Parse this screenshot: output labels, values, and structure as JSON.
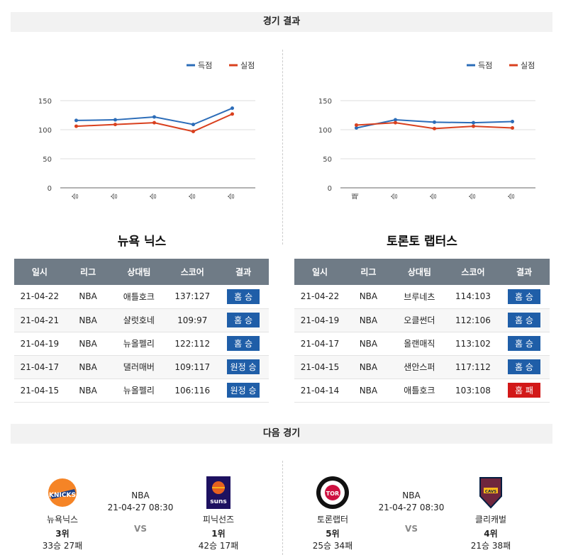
{
  "results_header": "경기 결과",
  "next_header": "다음 경기",
  "legend": {
    "score": "득점",
    "conceded": "실점"
  },
  "colors": {
    "score": "#2b6cb8",
    "conceded": "#d9401e",
    "win": "#1f5ea8",
    "loss": "#d21818",
    "table_header": "#6f7b86"
  },
  "chart_data": [
    {
      "type": "line",
      "categories": [
        "승",
        "승",
        "승",
        "승",
        "승"
      ],
      "ylim": [
        0,
        150
      ],
      "yticks": [
        0,
        50,
        100,
        150
      ],
      "series": [
        {
          "name": "득점",
          "values": [
            116,
            117,
            122,
            109,
            137
          ]
        },
        {
          "name": "실점",
          "values": [
            106,
            109,
            112,
            97,
            127
          ]
        }
      ],
      "legend": "top-right",
      "grid": true
    },
    {
      "type": "line",
      "categories": [
        "패",
        "승",
        "승",
        "승",
        "승"
      ],
      "ylim": [
        0,
        150
      ],
      "yticks": [
        0,
        50,
        100,
        150
      ],
      "series": [
        {
          "name": "득점",
          "values": [
            103,
            117,
            113,
            112,
            114
          ]
        },
        {
          "name": "실점",
          "values": [
            108,
            112,
            102,
            106,
            103
          ]
        }
      ],
      "legend": "top-right",
      "grid": true
    }
  ],
  "teams": [
    {
      "name": "뉴욕 닉스",
      "columns": [
        "일시",
        "리그",
        "상대팀",
        "스코어",
        "결과"
      ],
      "rows": [
        {
          "date": "21-04-22",
          "league": "NBA",
          "opponent": "애틀호크",
          "score": "137:127",
          "result": "홈 승",
          "win": true
        },
        {
          "date": "21-04-21",
          "league": "NBA",
          "opponent": "샬럿호네",
          "score": "109:97",
          "result": "홈 승",
          "win": true
        },
        {
          "date": "21-04-19",
          "league": "NBA",
          "opponent": "뉴올펠리",
          "score": "122:112",
          "result": "홈 승",
          "win": true
        },
        {
          "date": "21-04-17",
          "league": "NBA",
          "opponent": "댈러매버",
          "score": "109:117",
          "result": "원정 승",
          "win": true
        },
        {
          "date": "21-04-15",
          "league": "NBA",
          "opponent": "뉴올펠리",
          "score": "106:116",
          "result": "원정 승",
          "win": true
        }
      ]
    },
    {
      "name": "토론토 랩터스",
      "columns": [
        "일시",
        "리그",
        "상대팀",
        "스코어",
        "결과"
      ],
      "rows": [
        {
          "date": "21-04-22",
          "league": "NBA",
          "opponent": "브루네츠",
          "score": "114:103",
          "result": "홈 승",
          "win": true
        },
        {
          "date": "21-04-19",
          "league": "NBA",
          "opponent": "오클썬더",
          "score": "112:106",
          "result": "홈 승",
          "win": true
        },
        {
          "date": "21-04-17",
          "league": "NBA",
          "opponent": "올랜매직",
          "score": "113:102",
          "result": "홈 승",
          "win": true
        },
        {
          "date": "21-04-15",
          "league": "NBA",
          "opponent": "샌안스퍼",
          "score": "117:112",
          "result": "홈 승",
          "win": true
        },
        {
          "date": "21-04-14",
          "league": "NBA",
          "opponent": "애틀호크",
          "score": "103:108",
          "result": "홈 패",
          "win": false
        }
      ]
    }
  ],
  "next_games": [
    {
      "home": {
        "name": "뉴욕닉스",
        "rank": "3위",
        "record": "33승 27패",
        "logo": "knicks-logo"
      },
      "league": "NBA",
      "datetime": "21-04-27 08:30",
      "vs": "VS",
      "away": {
        "name": "피닉선즈",
        "rank": "1위",
        "record": "42승 17패",
        "logo": "suns-logo"
      }
    },
    {
      "home": {
        "name": "토론랩터",
        "rank": "5위",
        "record": "25승 34패",
        "logo": "raptors-logo"
      },
      "league": "NBA",
      "datetime": "21-04-27 08:30",
      "vs": "VS",
      "away": {
        "name": "클리캐벌",
        "rank": "4위",
        "record": "21승 38패",
        "logo": "cavaliers-logo"
      }
    }
  ]
}
